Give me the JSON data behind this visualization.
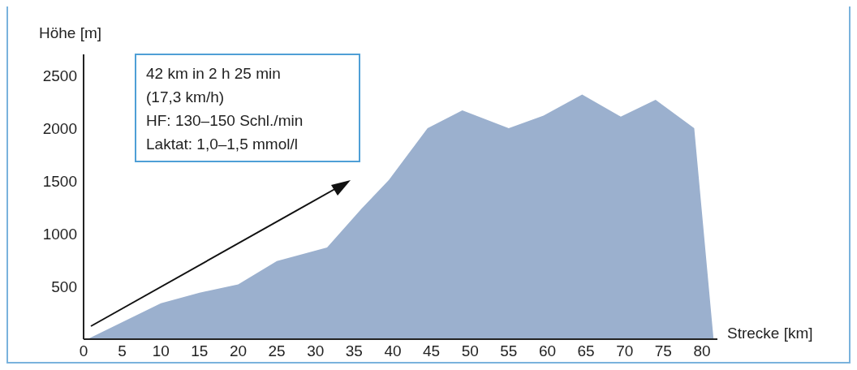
{
  "chart_data": {
    "type": "area",
    "ylabel": "Höhe [m]",
    "xlabel": "Strecke [km]",
    "x": [
      0.5,
      10,
      15,
      20,
      25,
      31.5,
      36,
      39.5,
      44.5,
      49,
      55,
      59.5,
      64.5,
      69.5,
      74,
      79,
      81.5
    ],
    "series": [
      {
        "color": "#9bb0ce",
        "values": [
          0,
          340,
          440,
          520,
          740,
          870,
          1240,
          1510,
          2000,
          2170,
          2000,
          2120,
          2320,
          2110,
          2270,
          2000,
          0
        ]
      }
    ],
    "xlim": [
      0,
      82
    ],
    "xticks": [
      0,
      5,
      10,
      15,
      20,
      25,
      30,
      35,
      40,
      45,
      50,
      55,
      60,
      65,
      70,
      75,
      80
    ],
    "ylim": [
      0,
      2700
    ],
    "yticks": [
      500,
      1000,
      1500,
      2000,
      2500
    ],
    "grid": false,
    "legend": false,
    "annotations": [
      "42 km in 2 h 25 min",
      "(17,3 km/h)",
      "HF: 130–150 Schl./min",
      "Laktat: 1,0–1,5 mmol/l"
    ]
  }
}
